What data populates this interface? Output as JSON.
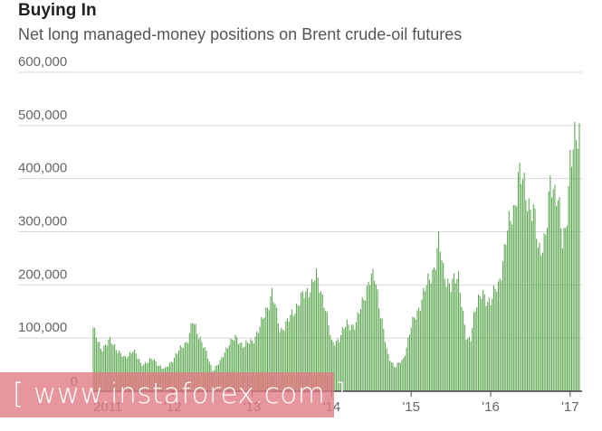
{
  "header": {
    "title": "Buying In",
    "subtitle": "Net long managed-money positions on Brent crude-oil futures"
  },
  "watermark": {
    "text": "[ www.instaforex.com ]"
  },
  "colors": {
    "bar": "#5aa64e",
    "grid": "#d8d8d8",
    "axis": "#444444"
  },
  "chart_data": {
    "type": "bar",
    "title": "Buying In",
    "subtitle": "Net long managed-money positions on Brent crude-oil futures",
    "xlabel": "",
    "ylabel": "",
    "ylim": [
      0,
      600000
    ],
    "yticks": [
      0,
      100000,
      200000,
      300000,
      400000,
      500000,
      600000
    ],
    "ytick_labels": [
      "0",
      "100,000",
      "200,000",
      "300,000",
      "400,000",
      "500,000",
      "600,000"
    ],
    "xlim": [
      2011,
      2017.15
    ],
    "xticks": [
      2011,
      2012,
      2013,
      2014,
      2015,
      2016,
      2017
    ],
    "xtick_labels": [
      "2011",
      "'12",
      "'13",
      "'14",
      "'15",
      "'16",
      "'17"
    ],
    "grid": true,
    "frequency": "weekly",
    "anchors": [
      [
        2011.0,
        120000
      ],
      [
        2011.05,
        95000
      ],
      [
        2011.1,
        80000
      ],
      [
        2011.2,
        95000
      ],
      [
        2011.3,
        80000
      ],
      [
        2011.4,
        60000
      ],
      [
        2011.5,
        80000
      ],
      [
        2011.6,
        50000
      ],
      [
        2011.75,
        60000
      ],
      [
        2011.9,
        40000
      ],
      [
        2012.0,
        60000
      ],
      [
        2012.1,
        80000
      ],
      [
        2012.2,
        100000
      ],
      [
        2012.25,
        130000
      ],
      [
        2012.35,
        100000
      ],
      [
        2012.5,
        40000
      ],
      [
        2012.6,
        55000
      ],
      [
        2012.7,
        90000
      ],
      [
        2012.8,
        100000
      ],
      [
        2012.9,
        85000
      ],
      [
        2013.0,
        95000
      ],
      [
        2013.1,
        120000
      ],
      [
        2013.2,
        165000
      ],
      [
        2013.25,
        185000
      ],
      [
        2013.35,
        115000
      ],
      [
        2013.45,
        130000
      ],
      [
        2013.55,
        160000
      ],
      [
        2013.7,
        190000
      ],
      [
        2013.8,
        215000
      ],
      [
        2013.9,
        175000
      ],
      [
        2014.0,
        90000
      ],
      [
        2014.1,
        100000
      ],
      [
        2014.2,
        130000
      ],
      [
        2014.3,
        120000
      ],
      [
        2014.4,
        180000
      ],
      [
        2014.5,
        210000
      ],
      [
        2014.55,
        220000
      ],
      [
        2014.6,
        160000
      ],
      [
        2014.7,
        70000
      ],
      [
        2014.8,
        45000
      ],
      [
        2014.9,
        60000
      ],
      [
        2015.0,
        120000
      ],
      [
        2015.1,
        160000
      ],
      [
        2015.2,
        200000
      ],
      [
        2015.3,
        240000
      ],
      [
        2015.35,
        280000
      ],
      [
        2015.4,
        230000
      ],
      [
        2015.5,
        195000
      ],
      [
        2015.6,
        220000
      ],
      [
        2015.65,
        150000
      ],
      [
        2015.7,
        90000
      ],
      [
        2015.75,
        100000
      ],
      [
        2015.8,
        160000
      ],
      [
        2015.9,
        180000
      ],
      [
        2016.0,
        170000
      ],
      [
        2016.1,
        200000
      ],
      [
        2016.2,
        290000
      ],
      [
        2016.3,
        350000
      ],
      [
        2016.35,
        410000
      ],
      [
        2016.45,
        370000
      ],
      [
        2016.55,
        330000
      ],
      [
        2016.6,
        260000
      ],
      [
        2016.7,
        300000
      ],
      [
        2016.75,
        380000
      ],
      [
        2016.85,
        380000
      ],
      [
        2016.9,
        270000
      ],
      [
        2016.95,
        300000
      ],
      [
        2017.0,
        450000
      ],
      [
        2017.05,
        470000
      ],
      [
        2017.1,
        460000
      ],
      [
        2017.12,
        475000
      ]
    ]
  }
}
